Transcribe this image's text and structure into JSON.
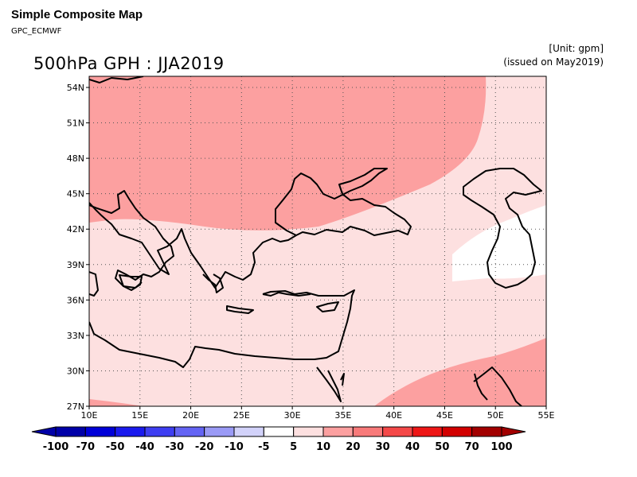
{
  "header": {
    "title": "Simple Composite Map",
    "subtitle": "GPC_ECMWF",
    "map_title": "500hPa GPH : JJA2019",
    "unit": "[Unit: gpm]",
    "issued": "(issued on May2019)"
  },
  "map": {
    "lat_labels": [
      "54N",
      "51N",
      "48N",
      "45N",
      "42N",
      "39N",
      "36N",
      "33N",
      "30N",
      "27N"
    ],
    "lon_labels": [
      "10E",
      "15E",
      "20E",
      "25E",
      "30E",
      "35E",
      "40E",
      "45E",
      "50E",
      "55E"
    ]
  },
  "colorbar": {
    "labels": [
      "-100",
      "-70",
      "-50",
      "-40",
      "-30",
      "-20",
      "-10",
      "-5",
      "5",
      "10",
      "20",
      "30",
      "40",
      "50",
      "70",
      "100"
    ],
    "colors": [
      "#0000a8",
      "#0000d8",
      "#1a1aee",
      "#3e3ef2",
      "#6464f4",
      "#9a9af6",
      "#d2d2fa",
      "#ffffff",
      "#fde0e0",
      "#fca0a0",
      "#f87a7a",
      "#f44848",
      "#ee1616",
      "#d20000",
      "#a20000"
    ]
  },
  "colors": {
    "band_5_10": "#fde0e0",
    "band_10_20": "#fca0a0",
    "band_neutral": "#ffffff"
  }
}
